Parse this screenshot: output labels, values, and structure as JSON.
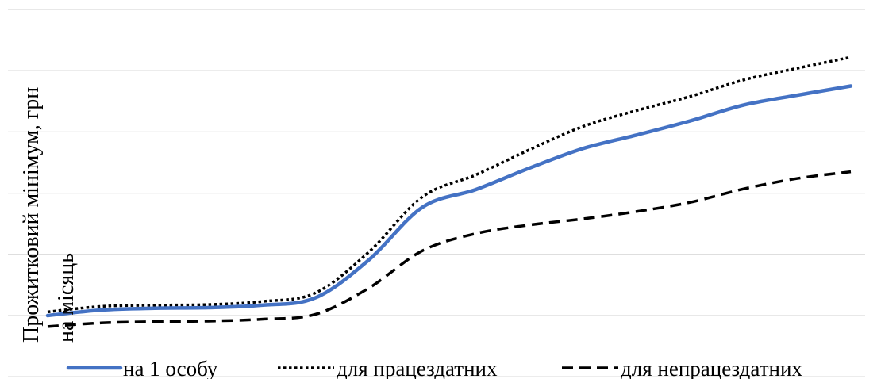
{
  "chart_data": {
    "type": "line",
    "title": "",
    "ylabel": "Прожитковий мінімум, грн на місяць",
    "ylabel_lines": [
      "Прожитковий мінімум, грн",
      "на місяць"
    ],
    "xlabel": "",
    "ylim": [
      -1,
      5
    ],
    "grid": true,
    "legend_position": "bottom",
    "x": [
      0,
      1,
      2,
      3,
      4,
      5,
      6,
      7,
      8,
      9,
      10,
      11,
      12,
      13,
      14,
      15
    ],
    "series": [
      {
        "name": "на 1 особу",
        "color": "#4472C4",
        "style": "solid",
        "values": [
          0.0,
          0.09,
          0.12,
          0.13,
          0.17,
          0.29,
          0.91,
          1.77,
          2.06,
          2.41,
          2.73,
          2.95,
          3.18,
          3.44,
          3.6,
          3.75
        ]
      },
      {
        "name": "для працездатних",
        "color": "#000000",
        "style": "dotted",
        "values": [
          0.06,
          0.15,
          0.17,
          0.18,
          0.23,
          0.37,
          1.04,
          1.94,
          2.3,
          2.71,
          3.09,
          3.35,
          3.58,
          3.85,
          4.04,
          4.22
        ]
      },
      {
        "name": "для непрацездатних",
        "color": "#000000",
        "style": "dashed",
        "values": [
          -0.18,
          -0.12,
          -0.1,
          -0.09,
          -0.06,
          0.02,
          0.45,
          1.06,
          1.34,
          1.48,
          1.58,
          1.7,
          1.85,
          2.07,
          2.24,
          2.35
        ]
      }
    ]
  }
}
